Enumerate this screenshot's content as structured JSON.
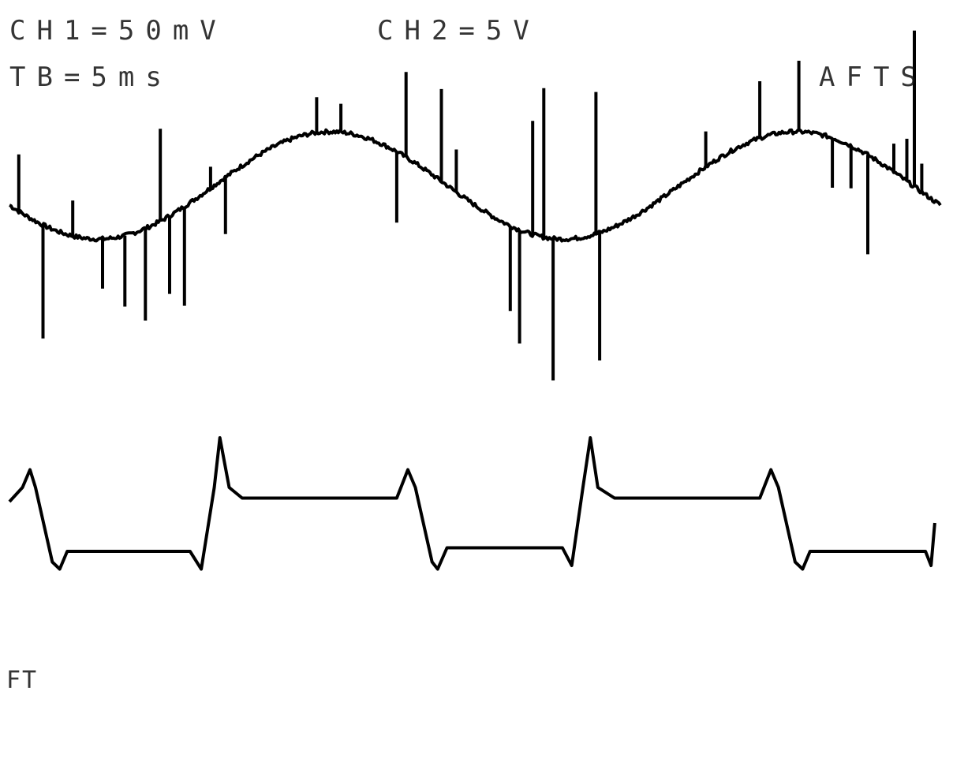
{
  "chart_data": {
    "type": "line",
    "title": "",
    "xlabel": "",
    "ylabel": "",
    "legend": "none",
    "grid": false,
    "annotations": {
      "ch1_scale": "CH1=50mV",
      "ch2_scale": "CH2=5V",
      "timebase": "TB=5ms",
      "mode": "AFTS",
      "corner_mark": "FT"
    },
    "xlim": [
      0,
      50
    ],
    "series": [
      {
        "channel": "CH1",
        "color": "#000000",
        "divisions_per_volt_note": "",
        "baseline_div": 0,
        "fundamental_period_ms": 25,
        "amplitude_div": 1.05,
        "noise_spikes": [
          {
            "t": 0.5,
            "v": 0.8
          },
          {
            "t": 1.8,
            "v": -1.6
          },
          {
            "t": 3.4,
            "v": 0.5
          },
          {
            "t": 5.0,
            "v": -0.7
          },
          {
            "t": 6.2,
            "v": -1.0
          },
          {
            "t": 7.3,
            "v": -1.3
          },
          {
            "t": 8.1,
            "v": 1.3
          },
          {
            "t": 8.6,
            "v": -1.1
          },
          {
            "t": 9.4,
            "v": -1.4
          },
          {
            "t": 10.8,
            "v": 0.3
          },
          {
            "t": 11.6,
            "v": -0.8
          },
          {
            "t": 16.5,
            "v": 0.5
          },
          {
            "t": 17.8,
            "v": 0.4
          },
          {
            "t": 20.8,
            "v": -1.0
          },
          {
            "t": 21.3,
            "v": 1.2
          },
          {
            "t": 23.2,
            "v": 1.3
          },
          {
            "t": 24.0,
            "v": 0.6
          },
          {
            "t": 26.9,
            "v": -1.2
          },
          {
            "t": 27.4,
            "v": -1.6
          },
          {
            "t": 28.1,
            "v": 1.6
          },
          {
            "t": 28.7,
            "v": 2.1
          },
          {
            "t": 29.2,
            "v": -2.0
          },
          {
            "t": 31.5,
            "v": 2.0
          },
          {
            "t": 31.7,
            "v": -1.8
          },
          {
            "t": 37.4,
            "v": 0.5
          },
          {
            "t": 40.3,
            "v": 0.8
          },
          {
            "t": 42.4,
            "v": 1.0
          },
          {
            "t": 44.2,
            "v": -0.7
          },
          {
            "t": 45.2,
            "v": -0.6
          },
          {
            "t": 46.1,
            "v": -1.4
          },
          {
            "t": 47.5,
            "v": 0.4
          },
          {
            "t": 48.2,
            "v": 0.6
          },
          {
            "t": 48.6,
            "v": 2.2
          },
          {
            "t": 49.0,
            "v": 0.4
          }
        ]
      },
      {
        "channel": "CH2",
        "color": "#000000",
        "waveform": "square with overshoot",
        "period_ms": 20,
        "high_div": 0.5,
        "low_div": -0.5,
        "overshoot_div": 0.35,
        "rising_edges_ms": [
          0.7,
          10.7,
          30.6
        ],
        "falling_edges_ms": [
          1.0,
          21.4,
          40.9
        ],
        "points": [
          [
            0.0,
            0.0
          ],
          [
            0.7,
            0.2
          ],
          [
            1.1,
            0.45
          ],
          [
            1.4,
            0.2
          ],
          [
            2.3,
            -0.85
          ],
          [
            2.7,
            -0.95
          ],
          [
            3.1,
            -0.7
          ],
          [
            9.7,
            -0.7
          ],
          [
            10.3,
            -0.95
          ],
          [
            11.0,
            0.2
          ],
          [
            11.3,
            0.9
          ],
          [
            11.8,
            0.2
          ],
          [
            12.5,
            0.05
          ],
          [
            20.8,
            0.05
          ],
          [
            21.4,
            0.45
          ],
          [
            21.8,
            0.2
          ],
          [
            22.7,
            -0.85
          ],
          [
            23.0,
            -0.95
          ],
          [
            23.5,
            -0.65
          ],
          [
            29.7,
            -0.65
          ],
          [
            30.2,
            -0.9
          ],
          [
            30.8,
            0.2
          ],
          [
            31.2,
            0.9
          ],
          [
            31.6,
            0.2
          ],
          [
            32.5,
            0.05
          ],
          [
            40.3,
            0.05
          ],
          [
            40.9,
            0.45
          ],
          [
            41.3,
            0.2
          ],
          [
            42.2,
            -0.85
          ],
          [
            42.6,
            -0.95
          ],
          [
            43.0,
            -0.7
          ],
          [
            49.2,
            -0.7
          ],
          [
            49.5,
            -0.9
          ],
          [
            49.7,
            -0.3
          ]
        ]
      }
    ]
  }
}
